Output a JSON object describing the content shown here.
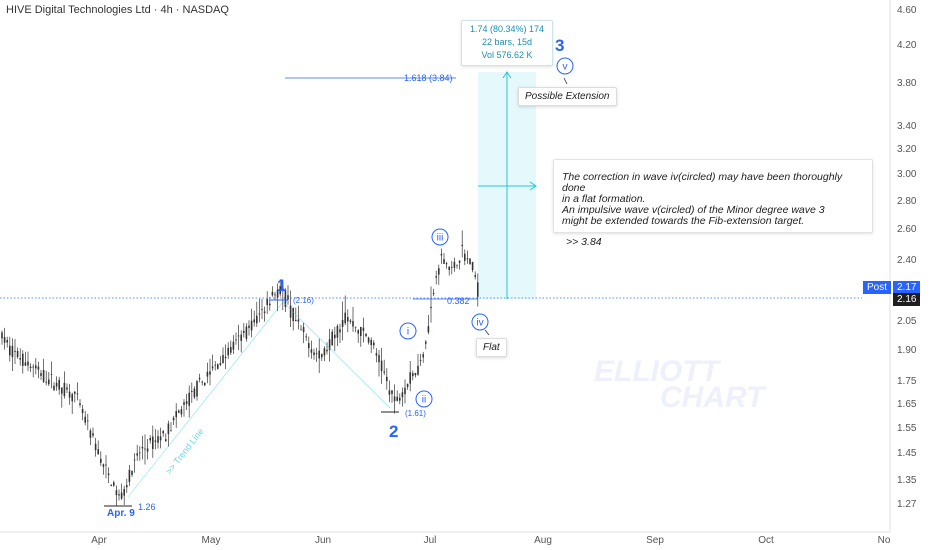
{
  "title": "HIVE Digital Technologies Ltd · 4h · NASDAQ",
  "chart_data": {
    "type": "candlestick",
    "y_axis_labels": [
      "4.60",
      "4.20",
      "3.80",
      "3.40",
      "3.20",
      "3.00",
      "2.80",
      "2.60",
      "2.40",
      "2.17",
      "2.05",
      "1.90",
      "1.75",
      "1.65",
      "1.55",
      "1.45",
      "1.35",
      "1.27"
    ],
    "y_ticks": [
      4.6,
      4.2,
      3.8,
      3.4,
      3.2,
      3.0,
      2.8,
      2.6,
      2.4,
      2.05,
      1.9,
      1.75,
      1.65,
      1.55,
      1.45,
      1.35,
      1.27
    ],
    "x_ticks": [
      "Apr",
      "May",
      "Jun",
      "Jul",
      "Aug",
      "Sep",
      "Oct",
      "No"
    ],
    "current_price": 2.16,
    "post_price": 2.17,
    "post_label": "Post",
    "waves": [
      {
        "label": "1",
        "price_label": "(2.16)"
      },
      {
        "label": "2",
        "price_label": "(1.61)"
      },
      {
        "label": "3",
        "price_label": ""
      },
      {
        "label": "i"
      },
      {
        "label": "ii"
      },
      {
        "label": "iii"
      },
      {
        "label": "iv"
      },
      {
        "label": "v"
      }
    ],
    "low_point": {
      "label": "Apr. 9",
      "price": "1.26"
    },
    "fib_extension": {
      "label": "1.618 (3.84)",
      "price": 3.84
    },
    "fib_retrace_label": "0.382",
    "trend_line_label": ">> Trend Line",
    "measure": {
      "line1": "1.74 (80.34%) 174",
      "line2": "22 bars, 15d",
      "line3": "Vol 576.62 K"
    },
    "callouts": {
      "extension": "Possible Extension",
      "flat": "Flat"
    },
    "note": {
      "text": "The correction in wave iv(circled) may have been thoroughly done in a flat formation. An impulsive wave v(circled) of the Minor degree wave 3 might be extended towards the Fib-extension target.",
      "line1": "The correction in wave iv(circled) may have been thoroughly done",
      "line2": "in a flat formation.",
      "line3": "An impulsive wave v(circled) of the Minor degree wave 3",
      "line4": "might be extended towards the Fib-extension target.",
      "target": ">> 3.84"
    },
    "watermark": {
      "line1": "ELLIOTT",
      "line2": "CHART"
    },
    "colors": {
      "wave": "#2962ff",
      "cyan": "#26c6da",
      "candle": "#333333",
      "dotted": "#2962ff",
      "post": "#2962ff"
    }
  }
}
